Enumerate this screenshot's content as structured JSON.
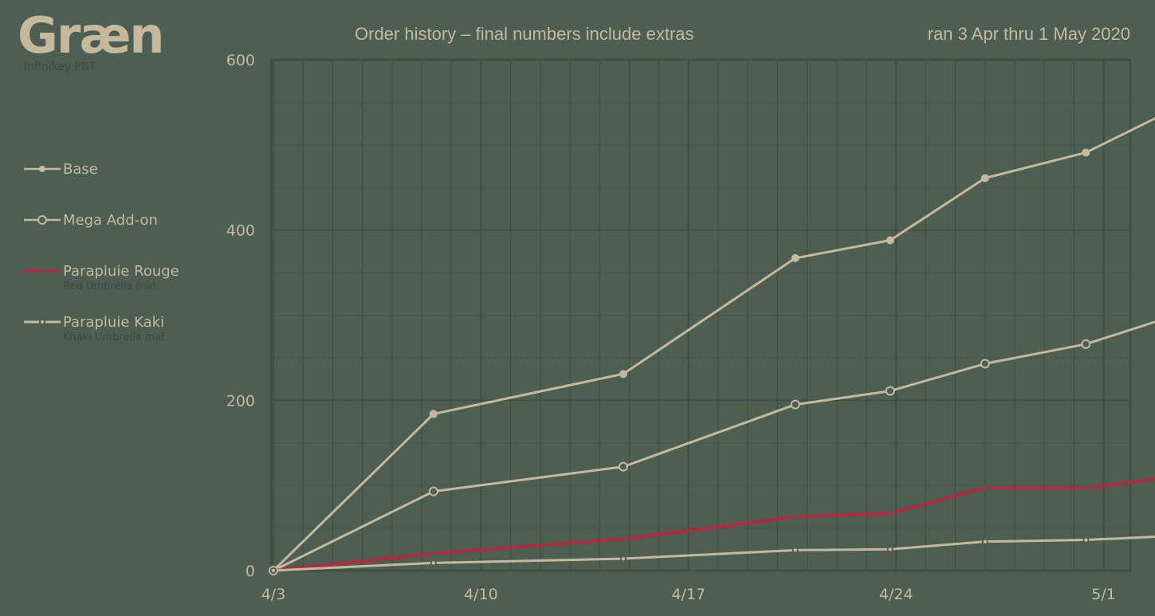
{
  "brand": {
    "name": "Græn",
    "subtitle": "Infinikey PBT"
  },
  "header": {
    "title": "Order history – final numbers include extras",
    "range": "ran 3 Apr thru 1 May 2020"
  },
  "colors": {
    "background": "#4d5e53",
    "line_light": "#c6b89b",
    "line_red": "#c0233f",
    "grid": "#3f4d43",
    "muted_text": "#3d4a41"
  },
  "legend": [
    {
      "label": "Base",
      "sublabel": "",
      "marker": "filled-dot",
      "color": "#c6b89b"
    },
    {
      "label": "Mega Add-on",
      "sublabel": "",
      "marker": "open-circle",
      "color": "#c6b89b"
    },
    {
      "label": "Parapluie Rouge",
      "sublabel": "Red Umbrella mat",
      "marker": "small-dot",
      "color": "#c0233f"
    },
    {
      "label": "Parapluie Kaki",
      "sublabel": "Khaki Umbrella mat",
      "marker": "small-dot",
      "color": "#c6b89b"
    }
  ],
  "chart_data": {
    "type": "line",
    "title": "Order history – final numbers include extras",
    "subtitle": "ran 3 Apr thru 1 May 2020",
    "xlabel": "",
    "ylabel": "",
    "x_tick_labels": [
      "4/3",
      "4/10",
      "4/17",
      "4/24",
      "5/1"
    ],
    "y_tick_labels": [
      "0",
      "200",
      "400",
      "600"
    ],
    "ylim": [
      0,
      600
    ],
    "x_day_range": [
      0,
      29.9
    ],
    "grid": true,
    "legend_position": "left",
    "x": [
      0,
      5.4,
      11.8,
      17.6,
      20.8,
      24.0,
      27.4,
      29.9
    ],
    "x_dates": [
      "4/3",
      "4/8",
      "4/14",
      "4/20",
      "4/23",
      "4/27",
      "4/30",
      "5/2"
    ],
    "series": [
      {
        "name": "Base",
        "values": [
          0,
          184,
          231,
          367,
          388,
          461,
          491,
          534
        ]
      },
      {
        "name": "Mega Add-on",
        "values": [
          0,
          93,
          122,
          195,
          211,
          243,
          266,
          294
        ]
      },
      {
        "name": "Parapluie Rouge",
        "values": [
          0,
          20,
          37,
          63,
          67,
          97,
          97,
          108
        ]
      },
      {
        "name": "Parapluie Kaki",
        "values": [
          0,
          9,
          14,
          24,
          25,
          34,
          36,
          40
        ]
      }
    ]
  }
}
